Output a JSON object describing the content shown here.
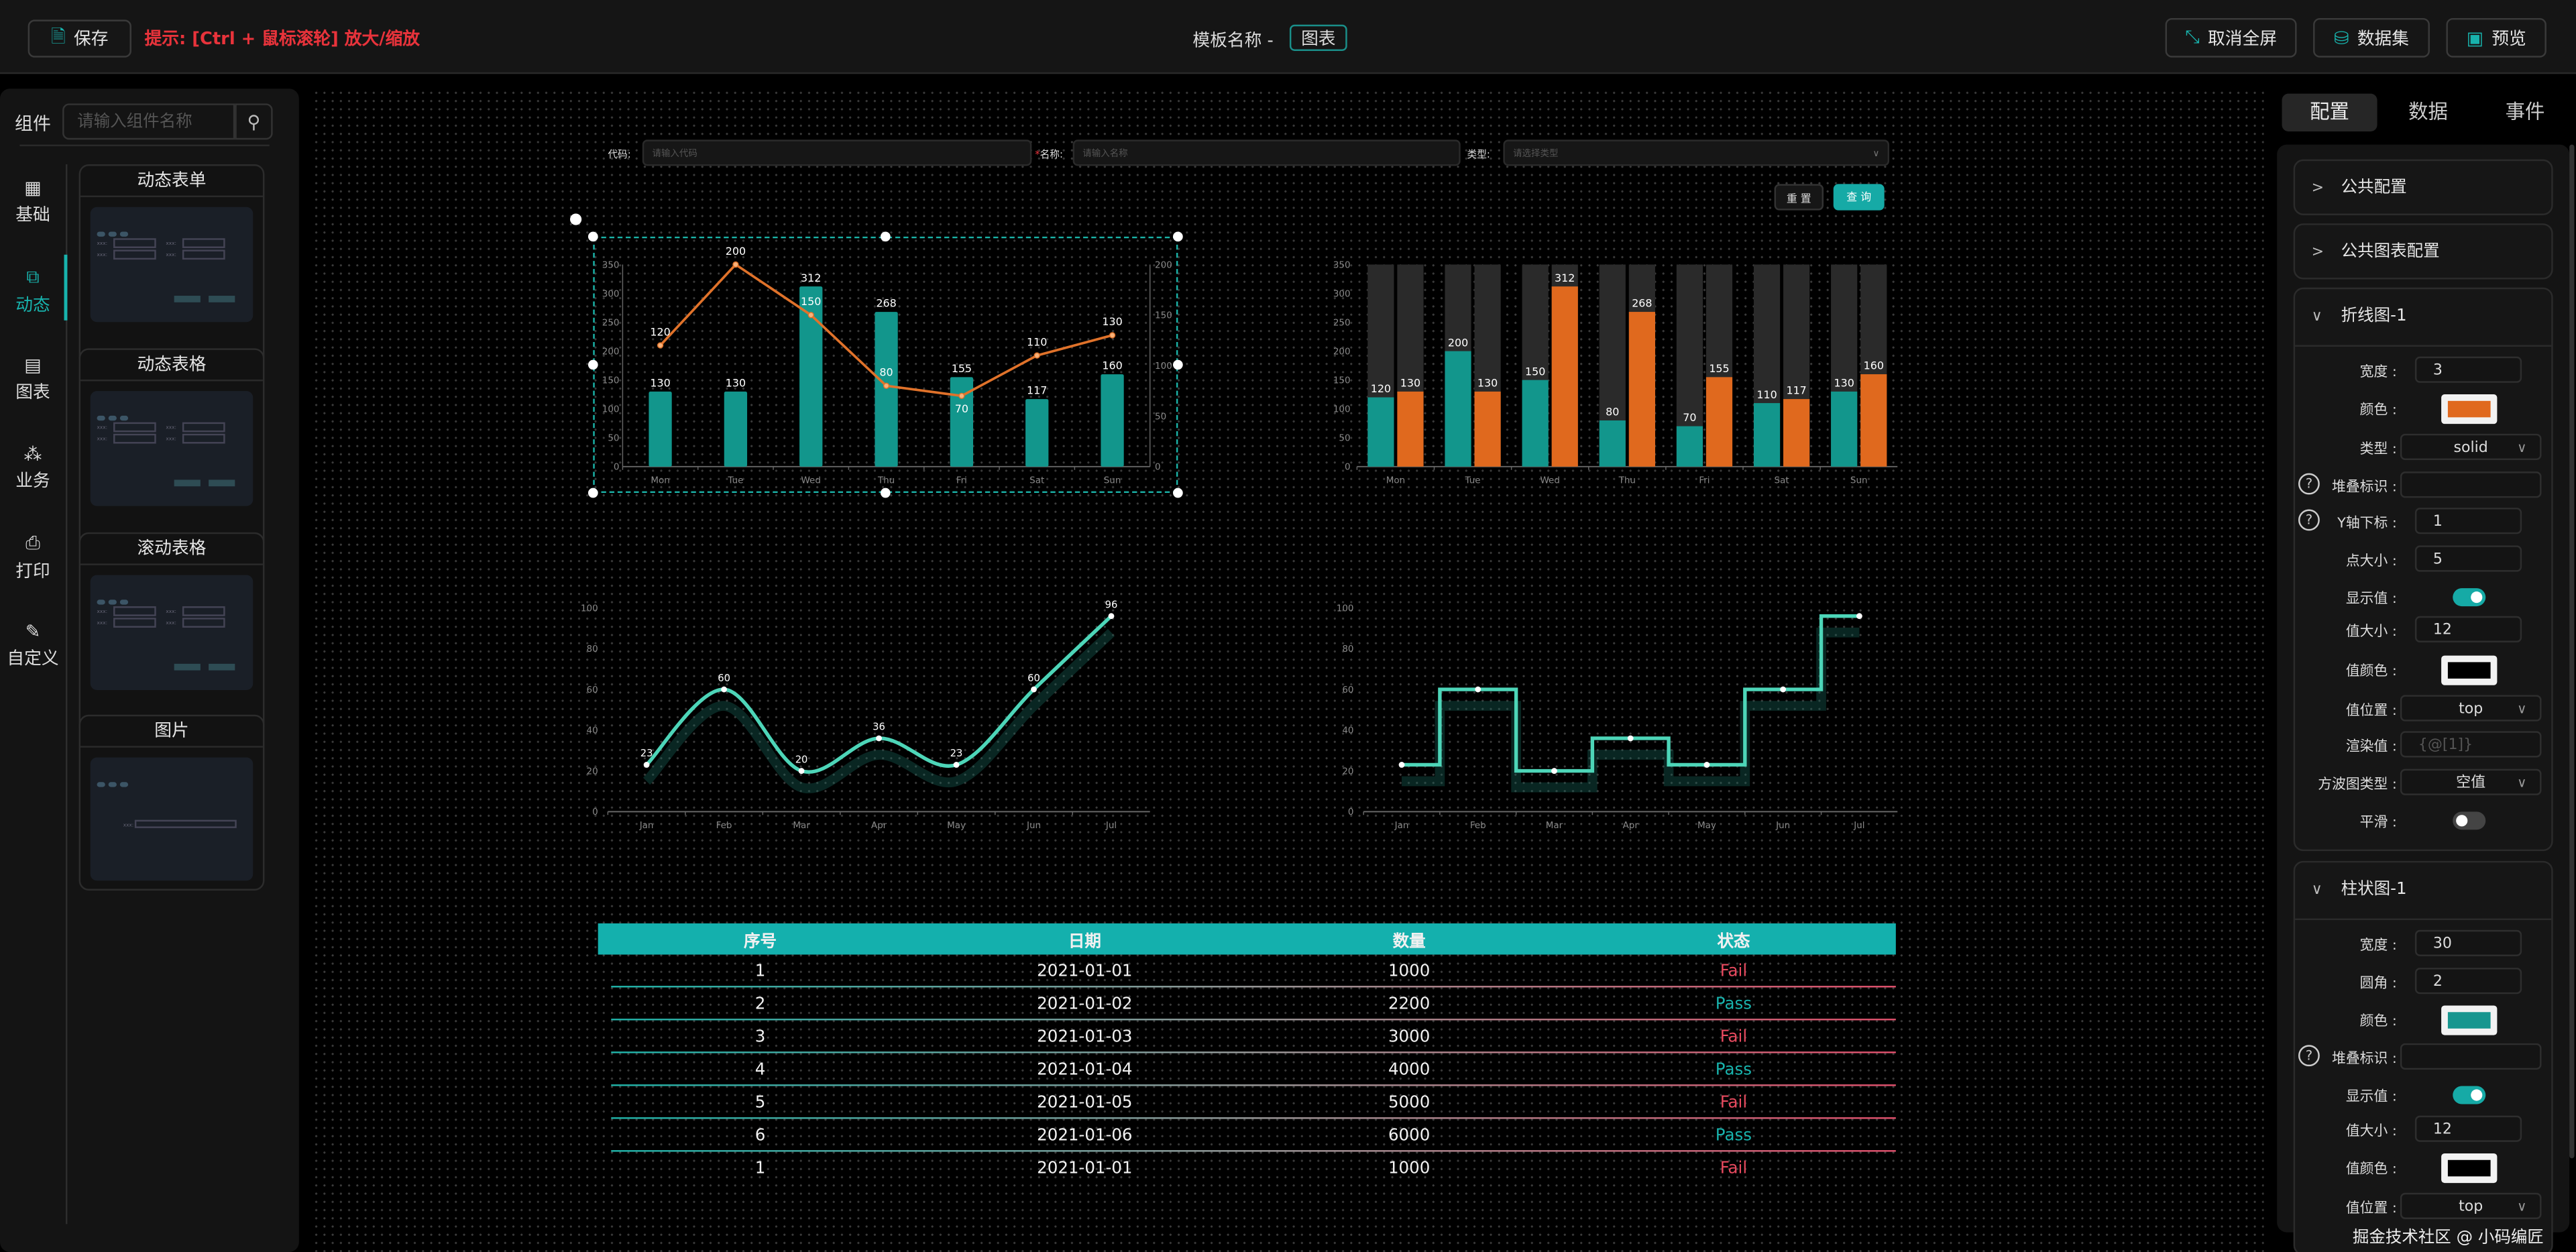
{
  "topbar": {
    "save_label": "保存",
    "hint": "提示: [Ctrl + 鼠标滚轮] 放大/缩放",
    "template_label": "模板名称 -",
    "template_name": "图表",
    "exit_fullscreen": "取消全屏",
    "dataset": "数据集",
    "preview": "预览"
  },
  "left": {
    "components_label": "组件",
    "search_placeholder": "请输入组件名称",
    "nav": [
      {
        "label": "基础",
        "icon": "grid-icon",
        "glyph": "▦"
      },
      {
        "label": "动态",
        "icon": "dynamic-icon",
        "glyph": "⧉"
      },
      {
        "label": "图表",
        "icon": "chart-icon",
        "glyph": "▤"
      },
      {
        "label": "业务",
        "icon": "business-icon",
        "glyph": "⁂"
      },
      {
        "label": "打印",
        "icon": "print-icon",
        "glyph": "⎙"
      },
      {
        "label": "自定义",
        "icon": "custom-icon",
        "glyph": "✎"
      }
    ],
    "cards": [
      {
        "title": "动态表单"
      },
      {
        "title": "动态表格"
      },
      {
        "title": "滚动表格"
      },
      {
        "title": "图片"
      }
    ],
    "preview_field": "xxx:"
  },
  "form": {
    "code_label": "代码:",
    "code_placeholder": "请输入代码",
    "name_label": "名称:",
    "name_placeholder": "请输入名称",
    "type_label": "类型:",
    "type_placeholder": "请选择类型",
    "reset": "重 置",
    "query": "查 询"
  },
  "chart_data": [
    {
      "type": "bar+line",
      "categories": [
        "Mon",
        "Tue",
        "Wed",
        "Thu",
        "Fri",
        "Sat",
        "Sun"
      ],
      "series": [
        {
          "name": "bar",
          "type": "bar",
          "values": [
            130,
            130,
            312,
            268,
            155,
            117,
            160
          ],
          "color": "#12968c"
        },
        {
          "name": "line",
          "type": "line",
          "values": [
            120,
            200,
            150,
            80,
            70,
            110,
            130
          ],
          "color": "#e0722a",
          "yAxis": "right"
        }
      ],
      "ylim": [
        0,
        350
      ],
      "yticks": [
        0,
        50,
        100,
        150,
        200,
        250,
        300,
        350
      ],
      "y2lim": [
        0,
        200
      ],
      "y2ticks": [
        0,
        50,
        100,
        150,
        200
      ]
    },
    {
      "type": "bar",
      "categories": [
        "Mon",
        "Tue",
        "Wed",
        "Thu",
        "Fri",
        "Sat",
        "Sun"
      ],
      "series": [
        {
          "name": "s1",
          "values": [
            120,
            200,
            150,
            80,
            70,
            110,
            130
          ],
          "color": "#12968c"
        },
        {
          "name": "s2",
          "values": [
            130,
            130,
            312,
            268,
            155,
            117,
            160
          ],
          "color": "#e0691e"
        }
      ],
      "background_color": "#2a2a2a",
      "ylim": [
        0,
        350
      ],
      "yticks": [
        0,
        50,
        100,
        150,
        200,
        250,
        300,
        350
      ]
    },
    {
      "type": "line",
      "smooth": true,
      "categories": [
        "Jan",
        "Feb",
        "Mar",
        "Apr",
        "May",
        "Jun",
        "Jul"
      ],
      "values": [
        23,
        60,
        20,
        36,
        23,
        60,
        96
      ],
      "color": "#4dd5b8",
      "ylim": [
        0,
        100
      ],
      "yticks": [
        0,
        20,
        40,
        60,
        80,
        100
      ],
      "show_labels": true
    },
    {
      "type": "line",
      "step": true,
      "categories": [
        "Jan",
        "Feb",
        "Mar",
        "Apr",
        "May",
        "Jun",
        "Jul"
      ],
      "values": [
        23,
        60,
        20,
        36,
        23,
        60,
        96
      ],
      "color": "#4dd5b8",
      "ylim": [
        0,
        100
      ],
      "yticks": [
        0,
        20,
        40,
        60,
        80,
        100
      ],
      "show_labels": false
    }
  ],
  "table": {
    "headers": [
      "序号",
      "日期",
      "数量",
      "状态"
    ],
    "rows": [
      [
        "1",
        "2021-01-01",
        "1000",
        "Fail"
      ],
      [
        "2",
        "2021-01-02",
        "2200",
        "Pass"
      ],
      [
        "3",
        "2021-01-03",
        "3000",
        "Fail"
      ],
      [
        "4",
        "2021-01-04",
        "4000",
        "Pass"
      ],
      [
        "5",
        "2021-01-05",
        "5000",
        "Fail"
      ],
      [
        "6",
        "2021-01-06",
        "6000",
        "Pass"
      ],
      [
        "1",
        "2021-01-01",
        "1000",
        "Fail"
      ]
    ]
  },
  "right": {
    "tabs": [
      "配置",
      "数据",
      "事件"
    ],
    "sections": {
      "common": "公共配置",
      "common_chart": "公共图表配置",
      "line": "折线图-1",
      "bar": "柱状图-1"
    },
    "line": {
      "width_label": "宽度 :",
      "width": "3",
      "color_label": "颜色 :",
      "color": "#e0691e",
      "type_label": "类型 :",
      "type": "solid",
      "stack_label": "堆叠标识 :",
      "yindex_label": "Y轴下标 :",
      "yindex": "1",
      "point_label": "点大小 :",
      "point": "5",
      "show_label": "显示值 :",
      "show": true,
      "vsize_label": "值大小 :",
      "vsize": "12",
      "vcolor_label": "值颜色 :",
      "vcolor": "#000000",
      "vpos_label": "值位置 :",
      "vpos": "top",
      "render_label": "渲染值 :",
      "render_placeholder": "{@[1]}",
      "step_label": "方波图类型 :",
      "step": "空值",
      "smooth_label": "平滑 :",
      "smooth": false
    },
    "bar": {
      "width_label": "宽度 :",
      "width": "30",
      "radius_label": "圆角 :",
      "radius": "2",
      "color_label": "颜色 :",
      "color": "#17968f",
      "stack_label": "堆叠标识 :",
      "show_label": "显示值 :",
      "show": true,
      "vsize_label": "值大小 :",
      "vsize": "12",
      "vcolor_label": "值颜色 :",
      "vcolor": "#000000",
      "vpos_label": "值位置 :",
      "vpos": "top"
    }
  },
  "watermark": "掘金技术社区 @ 小码编匠"
}
